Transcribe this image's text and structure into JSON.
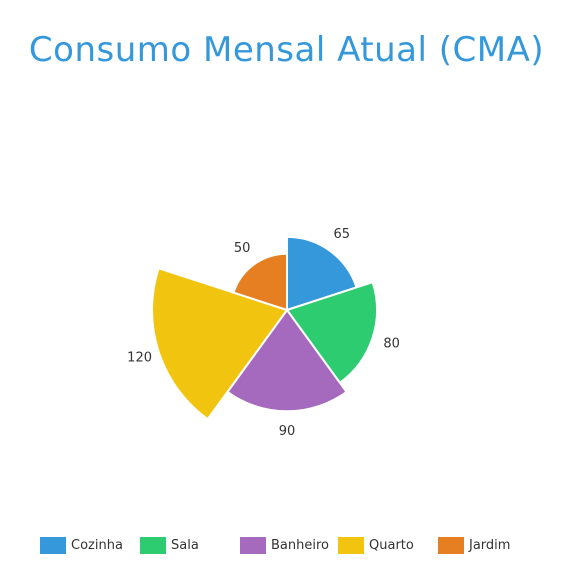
{
  "colors": {
    "title": "#3498DB",
    "border": "#ffffff"
  },
  "chart_data": {
    "type": "polar-area",
    "title": "Consumo Mensal Atual (CMA)",
    "categories": [
      "Cozinha",
      "Sala",
      "Banheiro",
      "Quarto",
      "Jardim"
    ],
    "values": [
      65,
      80,
      90,
      120,
      50
    ],
    "colors": [
      "#3498DB",
      "#2ECC71",
      "#A569BD",
      "#F1C40F",
      "#E67E22"
    ],
    "legend_position": "bottom",
    "grid": false
  }
}
